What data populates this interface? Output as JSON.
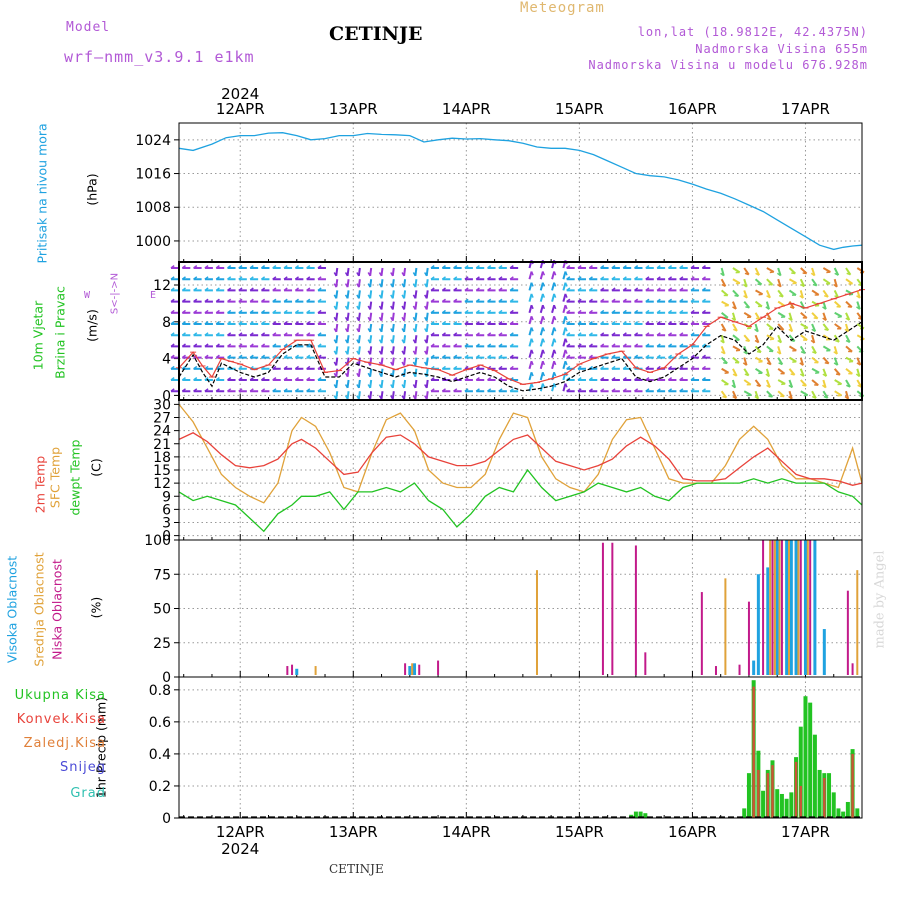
{
  "header": {
    "model_label": "Model",
    "model_name": "wrf–nmm_v3.9.1  e1km",
    "city": "CETINJE",
    "product": "Meteogram",
    "lonlat": "lon,lat (18.9812E, 42.4375N)",
    "elevation": "Nadmorska Visina 655m",
    "model_elevation": "Nadmorska Visina u modelu 676.928m"
  },
  "footer": {
    "city": "CETINJE",
    "credit": "made by Angel"
  },
  "colors": {
    "pressure": "#1fa2e0",
    "temp2m": "#e8423a",
    "sfc_temp": "#e0a23a",
    "dewpt": "#22c322",
    "cloud_high": "#1fa2e0",
    "cloud_mid": "#e0a23a",
    "cloud_low": "#c21a8a",
    "precip_total": "#22c322",
    "precip_conv": "#e8423a",
    "precip_frozen": "#e0803a",
    "snow": "#4a4ad6",
    "hail": "#2fc0b0",
    "label_purple": "#b259d6"
  },
  "chart_data": [
    {
      "type": "line",
      "panel": "pressure",
      "ylabel": [
        "Pritisak na nivou mora",
        "(hPa)"
      ],
      "yticks": [
        1000,
        1008,
        1016,
        1024
      ],
      "ylim": [
        995,
        1028
      ],
      "x_unit": "hours from 12APR 00UTC",
      "xlim": [
        -13,
        132
      ],
      "x_top_year": "2024",
      "x_top_labels": [
        "12APR",
        "13APR",
        "14APR",
        "15APR",
        "16APR",
        "17APR"
      ],
      "x_bottom_labels": [
        "12APR",
        "13APR",
        "14APR",
        "15APR",
        "16APR",
        "17APR"
      ],
      "x_bottom_year": "2024",
      "series": [
        {
          "name": "",
          "x": [
            -13,
            -10,
            -6,
            -3,
            0,
            3,
            6,
            9,
            12,
            15,
            18,
            21,
            24,
            27,
            30,
            33,
            36,
            39,
            42,
            45,
            48,
            51,
            54,
            57,
            60,
            63,
            66,
            69,
            72,
            75,
            78,
            81,
            84,
            87,
            90,
            93,
            96,
            99,
            102,
            105,
            108,
            111,
            114,
            117,
            120,
            123,
            126,
            128,
            130,
            132
          ],
          "values": [
            1022,
            1021.5,
            1023,
            1024.5,
            1025,
            1025,
            1025.6,
            1025.7,
            1025,
            1024,
            1024.3,
            1025,
            1025,
            1025.5,
            1025.3,
            1025.2,
            1025,
            1023.5,
            1024,
            1024.4,
            1024.2,
            1024.3,
            1024,
            1023.8,
            1023.2,
            1022.3,
            1022,
            1022,
            1021.5,
            1020.5,
            1019,
            1017.5,
            1016,
            1015.5,
            1015.2,
            1014.5,
            1013.5,
            1012.3,
            1011.3,
            1010,
            1008.5,
            1007,
            1005,
            1003,
            1001,
            999,
            998,
            998.5,
            998.8,
            999
          ]
        }
      ]
    },
    {
      "type": "line",
      "panel": "wind",
      "ylabel": [
        "10m Vjetar",
        "Brzina i Pravac",
        "(m/s)"
      ],
      "compass": {
        "n": "N",
        "s": "S",
        "w": "W",
        "e": "E"
      },
      "yticks": [
        0,
        4,
        8,
        12
      ],
      "ylim": [
        -0.5,
        14.5
      ],
      "series": [
        {
          "name": "",
          "color": "#000000",
          "x": [
            -13,
            -10,
            -8,
            -6,
            -4,
            -2,
            0,
            3,
            6,
            9,
            12,
            15,
            18,
            21,
            24,
            27,
            30,
            33,
            36,
            39,
            42,
            45,
            48,
            51,
            54,
            57,
            60,
            63,
            66,
            69,
            72,
            75,
            78,
            81,
            84,
            87,
            90,
            93,
            96,
            99,
            102,
            105,
            108,
            111,
            114,
            117,
            120,
            123,
            126,
            129,
            132
          ],
          "values": [
            2,
            4.4,
            2.5,
            1,
            3.5,
            3,
            2.5,
            2,
            2.5,
            4.5,
            5.5,
            5.5,
            2,
            2,
            3.5,
            3,
            2.5,
            2,
            2.5,
            2.3,
            2,
            1.5,
            2,
            2.5,
            2,
            1,
            0.5,
            0.7,
            1,
            1.5,
            2.5,
            3,
            3.5,
            4,
            2,
            1.5,
            2,
            3,
            4,
            5.5,
            6.5,
            6,
            4.5,
            5.5,
            7.5,
            6,
            7,
            6.5,
            6,
            7,
            8
          ]
        },
        {
          "name": "",
          "color": "#e8423a",
          "x": [
            -13,
            -10,
            -8,
            -6,
            -4,
            -2,
            0,
            3,
            6,
            9,
            12,
            15,
            18,
            21,
            24,
            27,
            30,
            33,
            36,
            39,
            42,
            45,
            48,
            51,
            54,
            57,
            60,
            63,
            66,
            69,
            72,
            75,
            78,
            81,
            84,
            87,
            90,
            93,
            96,
            99,
            102,
            105,
            108,
            111,
            114,
            117,
            120,
            123,
            126,
            129,
            132
          ],
          "values": [
            3,
            4.7,
            3.2,
            2,
            4,
            3.7,
            3.4,
            2.8,
            3.3,
            5,
            6,
            6,
            2.5,
            2.7,
            4,
            3.6,
            3.3,
            2.8,
            3.3,
            3,
            2.8,
            2.2,
            2.8,
            3.3,
            2.7,
            1.8,
            1.2,
            1.4,
            1.8,
            2.3,
            3.4,
            4,
            4.5,
            4.8,
            3,
            2.5,
            3,
            4.5,
            5.5,
            7.5,
            8.5,
            8,
            7.5,
            8.5,
            9.5,
            10,
            9.5,
            10,
            10.5,
            11,
            11.5
          ]
        }
      ]
    },
    {
      "type": "line",
      "panel": "temperature",
      "ylabel": [
        "2m Temp",
        "SFC Temp",
        "dewpt Temp",
        "(C)"
      ],
      "yticks": [
        0,
        3,
        6,
        9,
        12,
        15,
        18,
        21,
        24,
        27,
        30
      ],
      "ylim": [
        -1,
        31
      ],
      "series": [
        {
          "name": "2m Temp",
          "x": [
            -13,
            -10,
            -7,
            -4,
            -1,
            2,
            5,
            8,
            11,
            13,
            16,
            19,
            22,
            25,
            28,
            31,
            34,
            37,
            40,
            43,
            46,
            49,
            52,
            55,
            58,
            61,
            64,
            67,
            70,
            73,
            76,
            79,
            82,
            85,
            88,
            91,
            94,
            97,
            100,
            103,
            106,
            109,
            112,
            115,
            118,
            121,
            124,
            127,
            130,
            132
          ],
          "values": [
            22,
            23.5,
            21.5,
            18.5,
            16,
            15.5,
            16,
            17.5,
            21,
            22,
            20,
            17,
            14,
            14.5,
            19,
            22.5,
            23,
            21,
            18,
            17,
            16,
            16,
            17,
            19.5,
            22,
            23,
            20,
            17,
            16,
            15,
            16,
            17.5,
            20.5,
            22.5,
            20.5,
            17.5,
            13,
            12.5,
            12.5,
            13,
            15.5,
            18,
            20,
            17,
            14,
            13,
            13,
            12.5,
            11.5,
            12
          ]
        },
        {
          "name": "SFC Temp",
          "x": [
            -13,
            -10,
            -7,
            -4,
            -1,
            2,
            5,
            8,
            11,
            13,
            16,
            19,
            22,
            25,
            28,
            31,
            34,
            37,
            40,
            43,
            46,
            49,
            52,
            55,
            58,
            61,
            64,
            67,
            70,
            73,
            76,
            79,
            82,
            85,
            88,
            91,
            94,
            97,
            100,
            103,
            106,
            109,
            112,
            115,
            118,
            121,
            124,
            127,
            130,
            132
          ],
          "values": [
            30,
            26,
            20,
            14,
            11,
            9,
            7.5,
            12,
            24,
            27,
            25,
            19,
            11,
            10,
            19,
            26.5,
            28,
            24,
            15,
            12,
            11,
            11,
            14,
            22,
            28,
            27,
            18,
            13,
            11,
            10,
            14,
            22,
            26.5,
            27,
            20,
            13,
            12,
            12,
            12,
            16,
            22,
            25,
            22,
            16,
            13,
            13,
            12,
            11,
            20,
            12
          ]
        },
        {
          "name": "dewpt Temp",
          "x": [
            -13,
            -10,
            -7,
            -4,
            -1,
            2,
            5,
            8,
            11,
            13,
            16,
            19,
            22,
            25,
            28,
            31,
            34,
            37,
            40,
            43,
            46,
            49,
            52,
            55,
            58,
            61,
            64,
            67,
            70,
            73,
            76,
            79,
            82,
            85,
            88,
            91,
            94,
            97,
            100,
            103,
            106,
            109,
            112,
            115,
            118,
            121,
            124,
            127,
            130,
            132
          ],
          "values": [
            10,
            8,
            9,
            8,
            7,
            4,
            1,
            5,
            7,
            9,
            9,
            10,
            6,
            10,
            10,
            11,
            10,
            12,
            8,
            6,
            2,
            5,
            9,
            11,
            10,
            15,
            11,
            8,
            9,
            10,
            12,
            11,
            10,
            11,
            9,
            8,
            11,
            12,
            12,
            12,
            12,
            13,
            12,
            13,
            12,
            12,
            12,
            10,
            9,
            7
          ]
        }
      ]
    },
    {
      "type": "bar",
      "panel": "cloud",
      "ylabel": [
        "Visoka Oblacnost",
        "Srednja Oblacnost",
        "Niska Oblacnost",
        "(%)"
      ],
      "yticks": [
        0,
        25,
        50,
        75,
        100
      ],
      "ylim": [
        0,
        100
      ],
      "series": [
        {
          "name": "Visoka Oblacnost",
          "x": [
            12,
            36,
            37,
            109,
            110,
            112,
            114,
            116,
            117,
            118,
            120,
            122,
            124
          ],
          "values": [
            6,
            8,
            10,
            12,
            75,
            80,
            100,
            100,
            100,
            100,
            100,
            100,
            35
          ]
        },
        {
          "name": "Srednja Oblacnost",
          "x": [
            16,
            36.5,
            63,
            103,
            112.5,
            113.5,
            114.5,
            116.5,
            118.5,
            120.5,
            131
          ],
          "values": [
            8,
            10,
            78,
            72,
            100,
            100,
            100,
            100,
            100,
            100,
            78
          ]
        },
        {
          "name": "Niska Oblacnost",
          "x": [
            10,
            11,
            35,
            38,
            42,
            77,
            79,
            84,
            86,
            98,
            101,
            106,
            108,
            111,
            113,
            115,
            119,
            121,
            129,
            130
          ],
          "values": [
            8,
            9,
            10,
            9,
            12,
            98,
            98,
            96,
            18,
            62,
            8,
            9,
            55,
            100,
            100,
            100,
            100,
            100,
            63,
            10
          ]
        }
      ]
    },
    {
      "type": "bar",
      "panel": "precip",
      "ylabel": [
        "1hr Precip (mm)"
      ],
      "legend": [
        "Ukupna Kisa",
        "Konvek.Kisa",
        "Zaledj.Kisa",
        "Snijeg",
        "Grad"
      ],
      "yticks": [
        0,
        0.2,
        0.4,
        0.6,
        0.8
      ],
      "ylim": [
        0,
        0.88
      ],
      "series": [
        {
          "name": "Ukupna Kisa",
          "x": [
            83,
            84,
            85,
            86,
            107,
            108,
            109,
            110,
            111,
            112,
            113,
            114,
            115,
            116,
            117,
            118,
            119,
            120,
            121,
            122,
            123,
            124,
            125,
            126,
            127,
            128,
            129,
            130,
            131
          ],
          "values": [
            0.02,
            0.04,
            0.04,
            0.03,
            0.06,
            0.28,
            0.86,
            0.42,
            0.17,
            0.3,
            0.36,
            0.18,
            0.15,
            0.12,
            0.16,
            0.38,
            0.57,
            0.76,
            0.72,
            0.52,
            0.3,
            0.28,
            0.28,
            0.16,
            0.06,
            0.04,
            0.1,
            0.43,
            0.06
          ]
        },
        {
          "name": "Konvek.Kisa",
          "x": [
            109,
            110,
            112,
            113,
            118,
            119,
            124,
            130
          ],
          "values": [
            0.82,
            0.3,
            0.28,
            0.33,
            0.35,
            0.2,
            0.25,
            0.4
          ]
        }
      ]
    }
  ]
}
